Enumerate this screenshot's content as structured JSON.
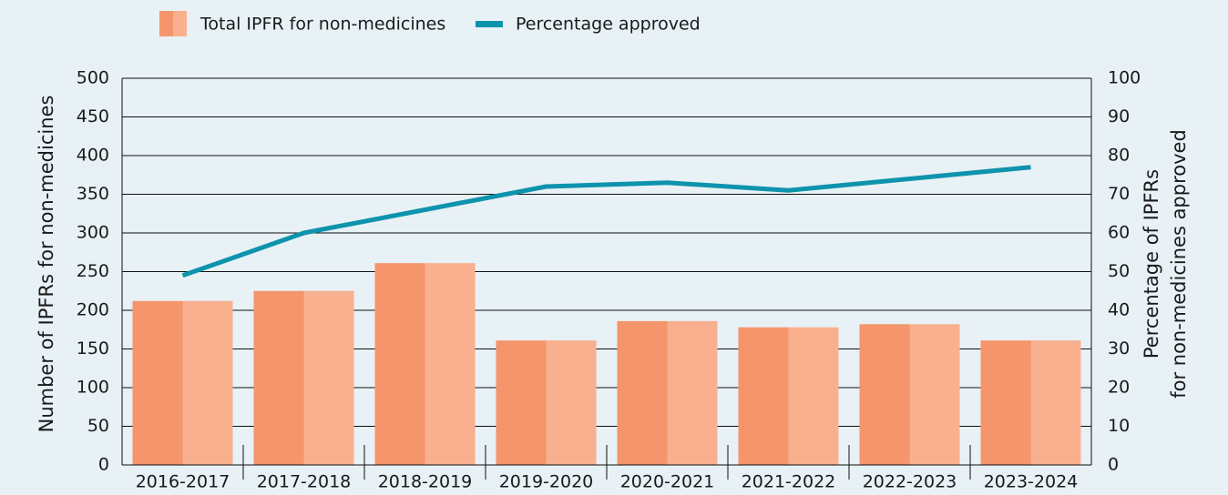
{
  "chart_data": {
    "type": "bar",
    "categories": [
      "2016-2017",
      "2017-2018",
      "2018-2019",
      "2019-2020",
      "2020-2021",
      "2021-2022",
      "2022-2023",
      "2023-2024"
    ],
    "series": [
      {
        "name": "Total IPFR for non-medicines",
        "color": "#f5956b",
        "color2": "#f8b08f",
        "values": [
          212,
          225,
          261,
          161,
          186,
          178,
          182,
          161
        ]
      },
      {
        "name": "Percentage approved",
        "type": "line",
        "axis": "y2",
        "color": "#0e93ad",
        "values": [
          49,
          60,
          66,
          72,
          73,
          71,
          74,
          77
        ]
      }
    ],
    "ylabel": "Number of IPFRs for non-medicines",
    "y2label": "Percentage of IPFRs for non-medicines approved",
    "ylim": [
      0,
      500
    ],
    "yticks": [
      0,
      50,
      100,
      150,
      200,
      250,
      300,
      350,
      400,
      450,
      500
    ],
    "y2lim": [
      0,
      100
    ],
    "y2ticks": [
      0,
      10,
      20,
      30,
      40,
      50,
      60,
      70,
      80,
      90,
      100
    ],
    "grid": true,
    "legend": "top"
  }
}
